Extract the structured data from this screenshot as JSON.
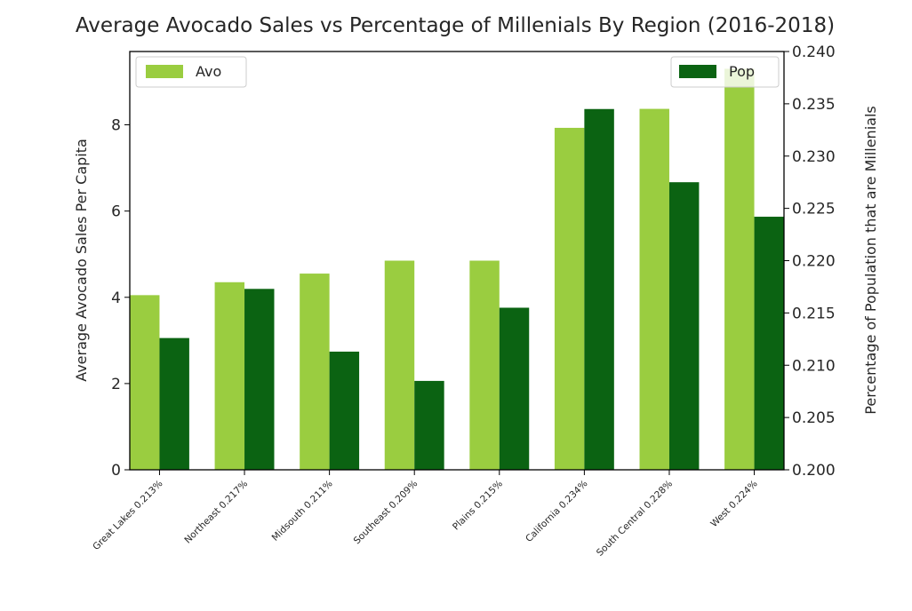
{
  "chart_data": {
    "type": "bar",
    "title": "Average Avocado Sales vs Percentage of Millenials By Region (2016-2018)",
    "categories": [
      "Great Lakes 0.213%",
      "Northeast 0.217%",
      "Midsouth 0.211%",
      "Southeast 0.209%",
      "Plains 0.215%",
      "California 0.234%",
      "South Central 0.228%",
      "West 0.224%"
    ],
    "series": [
      {
        "name": "Avo",
        "axis": "left",
        "color": "#9acd40",
        "values": [
          4.05,
          4.35,
          4.55,
          4.85,
          4.85,
          7.93,
          8.37,
          9.3
        ]
      },
      {
        "name": "Pop",
        "axis": "right",
        "color": "#0b6312",
        "values": [
          0.2126,
          0.2173,
          0.2113,
          0.2085,
          0.2155,
          0.2345,
          0.2275,
          0.2242
        ]
      }
    ],
    "ylabel": "Average Avocado Sales Per Capita",
    "ylim": [
      0,
      9.7
    ],
    "yticks": [
      "0",
      "2",
      "4",
      "6",
      "8"
    ],
    "y2label": "Percentage of Population that are Millenials",
    "y2lim": [
      0.2,
      0.24
    ],
    "y2ticks": [
      "0.200",
      "0.205",
      "0.210",
      "0.215",
      "0.220",
      "0.225",
      "0.230",
      "0.235",
      "0.240"
    ],
    "grid": false,
    "legend_left": "upper-left",
    "legend_right": "upper-right"
  }
}
